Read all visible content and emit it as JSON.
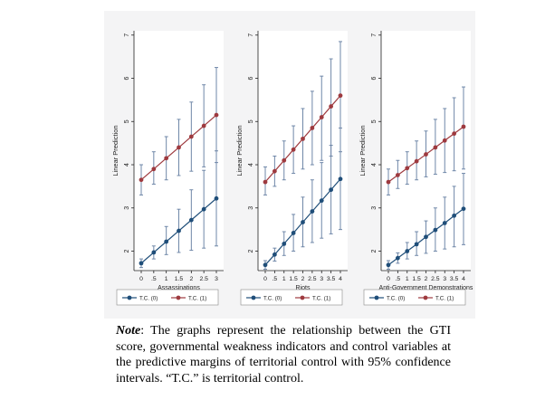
{
  "colors": {
    "series0": "#1f4e79",
    "series1": "#9e3a3f",
    "ci": "#6f87a8",
    "background": "#f4f4f5"
  },
  "note": {
    "label": "Note",
    "text": ": The graphs represent the relationship between the GTI score, governmental weakness indicators and control variables at the predictive margins of territorial control with 95% confidence intervals. “T.C.” is territorial control."
  },
  "chart_data": [
    {
      "type": "line",
      "xlabel": "Assassinations",
      "ylabel": "Linear Prediction",
      "x": [
        0,
        0.5,
        1,
        1.5,
        2,
        2.5,
        3
      ],
      "x_tick_labels": [
        "0",
        ".5",
        "1",
        "1.5",
        "2",
        "2.5",
        "3"
      ],
      "ylim": [
        1.55,
        7.1
      ],
      "y_ticks": [
        2,
        3,
        4,
        5,
        6,
        7
      ],
      "legend_position": "bottom",
      "series": [
        {
          "name": "T.C. (0)",
          "values": [
            1.72,
            1.97,
            2.22,
            2.47,
            2.72,
            2.97,
            3.22
          ],
          "lower": [
            1.62,
            1.82,
            1.92,
            1.97,
            2.02,
            2.07,
            2.12
          ],
          "upper": [
            1.82,
            2.12,
            2.57,
            2.97,
            3.42,
            3.87,
            4.32
          ]
        },
        {
          "name": "T.C. (1)",
          "values": [
            3.65,
            3.9,
            4.15,
            4.4,
            4.65,
            4.9,
            5.15
          ],
          "lower": [
            3.3,
            3.55,
            3.65,
            3.75,
            3.85,
            3.95,
            4.05
          ],
          "upper": [
            4.0,
            4.3,
            4.65,
            5.05,
            5.45,
            5.85,
            6.25
          ]
        }
      ]
    },
    {
      "type": "line",
      "xlabel": "Riots",
      "ylabel": "Linear Prediction",
      "x": [
        0,
        0.5,
        1,
        1.5,
        2,
        2.5,
        3,
        3.5,
        4
      ],
      "x_tick_labels": [
        "0",
        ".5",
        "1",
        "1.5",
        "2",
        "2.5",
        "3",
        "3.5",
        "4"
      ],
      "ylim": [
        1.55,
        7.1
      ],
      "y_ticks": [
        2,
        3,
        4,
        5,
        6,
        7
      ],
      "legend_position": "bottom",
      "series": [
        {
          "name": "T.C. (0)",
          "values": [
            1.68,
            1.92,
            2.17,
            2.42,
            2.67,
            2.92,
            3.17,
            3.42,
            3.67
          ],
          "lower": [
            1.58,
            1.77,
            1.9,
            2.0,
            2.1,
            2.2,
            2.3,
            2.4,
            2.5
          ],
          "upper": [
            1.78,
            2.07,
            2.45,
            2.85,
            3.25,
            3.65,
            4.05,
            4.45,
            4.85
          ]
        },
        {
          "name": "T.C. (1)",
          "values": [
            3.6,
            3.85,
            4.1,
            4.35,
            4.6,
            4.85,
            5.1,
            5.35,
            5.6
          ],
          "lower": [
            3.3,
            3.5,
            3.65,
            3.8,
            3.9,
            4.0,
            4.1,
            4.2,
            4.3
          ],
          "upper": [
            3.95,
            4.2,
            4.55,
            4.9,
            5.3,
            5.7,
            6.05,
            6.45,
            6.85
          ]
        }
      ]
    },
    {
      "type": "line",
      "xlabel": "Anti-Government Demonstrations",
      "ylabel": "Linear Prediction",
      "x": [
        0,
        0.5,
        1,
        1.5,
        2,
        2.5,
        3,
        3.5,
        4
      ],
      "x_tick_labels": [
        "0",
        ".5",
        "1",
        "1.5",
        "2",
        "2.5",
        "3",
        "3.5",
        "4"
      ],
      "ylim": [
        1.55,
        7.1
      ],
      "y_ticks": [
        2,
        3,
        4,
        5,
        6,
        7
      ],
      "legend_position": "bottom",
      "series": [
        {
          "name": "T.C. (0)",
          "values": [
            1.68,
            1.84,
            2.0,
            2.16,
            2.33,
            2.49,
            2.65,
            2.82,
            2.98
          ],
          "lower": [
            1.58,
            1.72,
            1.82,
            1.9,
            1.95,
            2.0,
            2.05,
            2.1,
            2.15
          ],
          "upper": [
            1.78,
            1.96,
            2.2,
            2.45,
            2.7,
            3.0,
            3.25,
            3.5,
            3.8
          ]
        },
        {
          "name": "T.C. (1)",
          "values": [
            3.6,
            3.76,
            3.92,
            4.08,
            4.24,
            4.4,
            4.56,
            4.72,
            4.88
          ],
          "lower": [
            3.3,
            3.45,
            3.55,
            3.65,
            3.72,
            3.78,
            3.82,
            3.86,
            3.9
          ],
          "upper": [
            3.9,
            4.1,
            4.3,
            4.55,
            4.78,
            5.05,
            5.3,
            5.55,
            5.8
          ]
        }
      ]
    }
  ]
}
